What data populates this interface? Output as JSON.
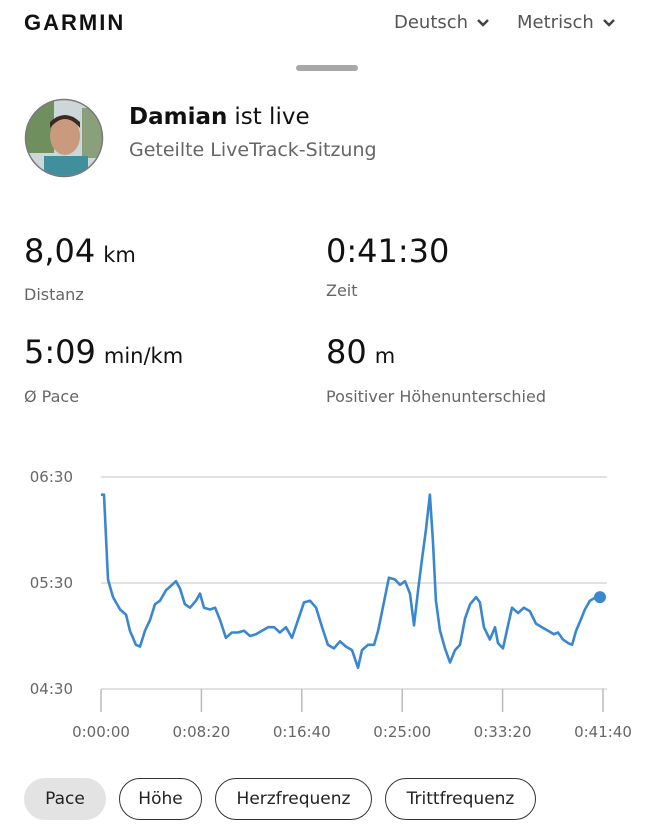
{
  "header": {
    "logo": "GARMIN",
    "language": "Deutsch",
    "units": "Metrisch"
  },
  "profile": {
    "name": "Damian",
    "status": "ist live",
    "subtitle": "Geteilte LiveTrack-Sitzung"
  },
  "stats": [
    {
      "value": "8,04",
      "unit": "km",
      "label": "Distanz"
    },
    {
      "value": "0:41:30",
      "label": "Zeit"
    },
    {
      "value": "5:09",
      "unit": "min/km",
      "label": "Ø Pace"
    },
    {
      "value": "80",
      "unit": "m",
      "label": "Positiver Höhenunterschied"
    }
  ],
  "chart_data": {
    "type": "line",
    "x": [
      0,
      15,
      35,
      60,
      95,
      125,
      144,
      174,
      194,
      219,
      244,
      269,
      294,
      324,
      354,
      373,
      393,
      418,
      443,
      473,
      493,
      513,
      543,
      568,
      593,
      622,
      652,
      682,
      712,
      742,
      772,
      802,
      832,
      862,
      891,
      921,
      951,
      981,
      1011,
      1041,
      1071,
      1101,
      1130,
      1160,
      1190,
      1220,
      1250,
      1280,
      1300,
      1330,
      1360,
      1380,
      1409,
      1434,
      1464,
      1489,
      1514,
      1539,
      1559,
      1579,
      1598,
      1618,
      1638,
      1653,
      1668,
      1688,
      1713,
      1738,
      1763,
      1788,
      1813,
      1838,
      1868,
      1887,
      1907,
      1937,
      1962,
      1977,
      2002,
      2027,
      2047,
      2077,
      2106,
      2136,
      2166,
      2196,
      2226,
      2256,
      2276,
      2301,
      2326,
      2346,
      2366,
      2385,
      2410,
      2435,
      2465,
      2485
    ],
    "series": [
      {
        "color": "#3a87cf",
        "values": [
          380,
          380,
          332,
          322,
          315,
          312,
          303,
          295,
          294,
          303,
          309,
          318,
          320,
          326,
          329,
          331,
          327,
          318,
          316,
          320,
          324,
          316,
          315,
          316,
          309,
          299,
          302,
          302,
          303,
          300,
          301,
          303,
          305,
          305,
          302,
          305,
          299,
          309,
          319,
          320,
          316,
          305,
          295,
          293,
          297,
          294,
          292,
          282,
          292,
          295,
          295,
          303,
          319,
          333,
          332,
          329,
          331,
          324,
          306,
          326,
          343,
          360,
          380,
          354,
          320,
          303,
          293,
          285,
          292,
          295,
          310,
          318,
          322,
          319,
          305,
          298,
          305,
          296,
          293,
          306,
          316,
          313,
          316,
          314,
          307,
          305,
          303,
          301,
          302,
          298,
          296,
          295,
          303,
          308,
          315,
          320,
          322,
          322
        ]
      }
    ],
    "xlim": [
      0,
      2500
    ],
    "xticks": [
      {
        "value": 0,
        "label": "0:00:00"
      },
      {
        "value": 500,
        "label": "0:08:20"
      },
      {
        "value": 1000,
        "label": "0:16:40"
      },
      {
        "value": 1500,
        "label": "0:25:00"
      },
      {
        "value": 2000,
        "label": "0:33:20"
      },
      {
        "value": 2500,
        "label": "0:41:40"
      }
    ],
    "ylim": [
      270,
      390
    ],
    "yticks": [
      {
        "value": 270,
        "label": "04:30"
      },
      {
        "value": 330,
        "label": "05:30"
      },
      {
        "value": 390,
        "label": "06:30"
      }
    ],
    "grid": true
  },
  "tabs": [
    "Pace",
    "Höhe",
    "Herzfrequenz",
    "Trittfrequenz"
  ]
}
